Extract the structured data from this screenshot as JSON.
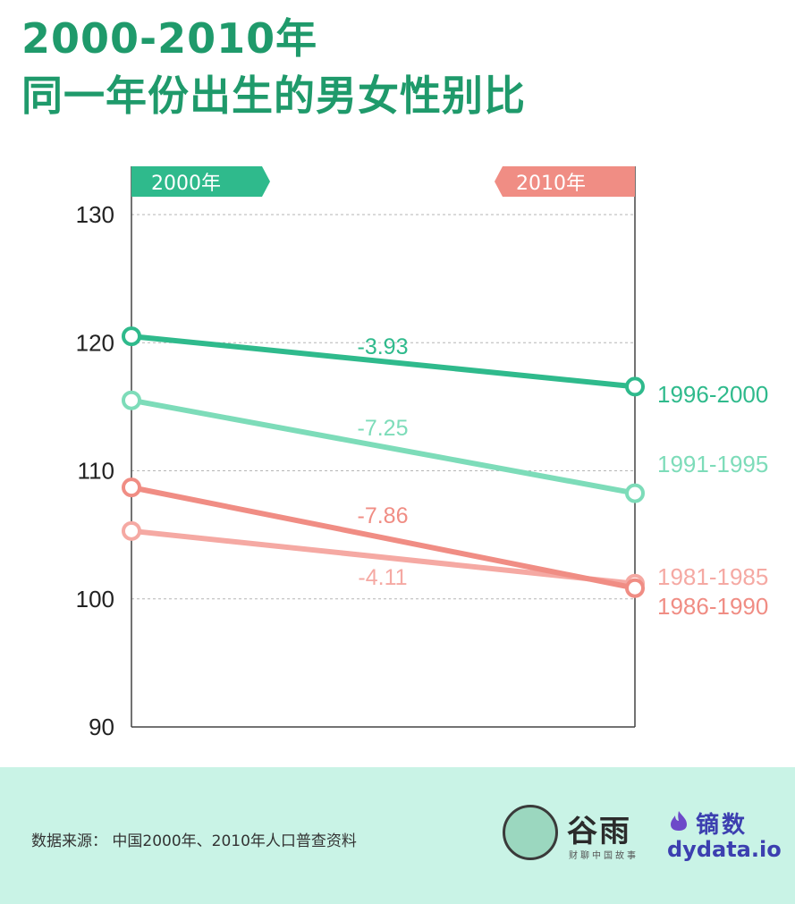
{
  "title_line1": "2000-2010年",
  "title_line2": "同一年份出生的男女性别比",
  "colors": {
    "title": "#1f9a6b",
    "dark_green": "#2fba8c",
    "light_green": "#7ddcb9",
    "salmon": "#f08d84",
    "light_salmon": "#f5a9a3",
    "footer_bg": "#c9f3e6"
  },
  "chart_data": {
    "type": "line",
    "title": "",
    "xlabel": "",
    "ylabel": "",
    "x": [
      "2000年",
      "2010年"
    ],
    "ylim": [
      90,
      130
    ],
    "y_ticks": [
      90,
      100,
      110,
      120,
      130
    ],
    "grid": true,
    "series": [
      {
        "name": "1996-2000",
        "values": [
          120.5,
          116.57
        ],
        "change": "-3.93",
        "color": "#2fba8c"
      },
      {
        "name": "1991-1995",
        "values": [
          115.5,
          108.25
        ],
        "change": "-7.25",
        "color": "#7ddcb9"
      },
      {
        "name": "1986-1990",
        "values": [
          108.7,
          100.84
        ],
        "change": "-7.86",
        "color": "#f08d84"
      },
      {
        "name": "1981-1985",
        "values": [
          105.3,
          101.19
        ],
        "change": "-4.11",
        "color": "#f5a9a3"
      }
    ]
  },
  "footer": {
    "source": "数据来源：  中国2000年、2010年人口普查资料",
    "logo_guyu": "谷雨",
    "logo_guyu_tag": "财聊中国故事",
    "logo_dy": "镝数",
    "logo_dy_url": "dydata.io"
  }
}
